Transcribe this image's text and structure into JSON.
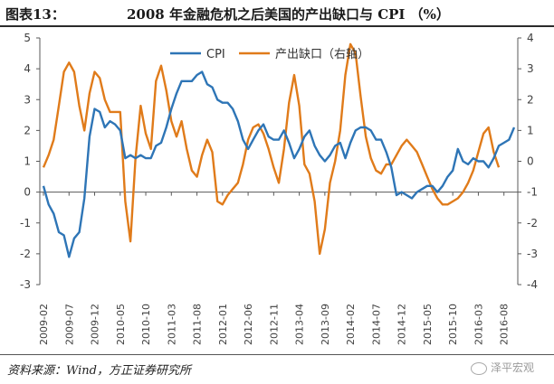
{
  "header": {
    "figure_label": "图表13：",
    "title": "2008 年金融危机之后美国的产出缺口与 CPI （%）"
  },
  "footer": {
    "source": "资料来源：Wind，方正证券研究所",
    "watermark": "泽平宏观"
  },
  "chart_data": {
    "type": "line",
    "title": "2008 年金融危机之后美国的产出缺口与 CPI （%）",
    "xlabel": "",
    "ylabel_left": "",
    "ylabel_right": "",
    "ylim_left": [
      -3,
      5
    ],
    "ylim_right": [
      -4,
      4
    ],
    "y_ticks_left": [
      "5",
      "4",
      "3",
      "2",
      "1",
      "0",
      "-1",
      "-2",
      "-3"
    ],
    "y_ticks_right": [
      "4",
      "3",
      "2",
      "1",
      "0",
      "-1",
      "-2",
      "-3",
      "-4"
    ],
    "x_tick_labels": [
      "2009-02",
      "2009-07",
      "2009-12",
      "2010-05",
      "2010-10",
      "2011-03",
      "2011-08",
      "2012-01",
      "2012-06",
      "2012-11",
      "2013-04",
      "2013-09",
      "2014-02",
      "2014-07",
      "2014-12",
      "2015-05",
      "2015-10",
      "2016-03",
      "2016-08"
    ],
    "legend_position": "top",
    "grid": false,
    "colors": {
      "cpi": "#2e75b6",
      "gap": "#e07b1a",
      "axis": "#595959"
    },
    "series": [
      {
        "name": "CPI",
        "axis": "left",
        "values": [
          0.2,
          -0.4,
          -0.7,
          -1.3,
          -1.4,
          -2.1,
          -1.5,
          -1.3,
          -0.2,
          1.8,
          2.7,
          2.6,
          2.1,
          2.3,
          2.2,
          2.0,
          1.1,
          1.2,
          1.1,
          1.2,
          1.1,
          1.1,
          1.5,
          1.6,
          2.1,
          2.7,
          3.2,
          3.6,
          3.6,
          3.6,
          3.8,
          3.9,
          3.5,
          3.4,
          3.0,
          2.9,
          2.9,
          2.7,
          2.3,
          1.7,
          1.4,
          1.7,
          2.0,
          2.2,
          1.8,
          1.7,
          1.7,
          2.0,
          1.6,
          1.1,
          1.4,
          1.8,
          2.0,
          1.5,
          1.2,
          1.0,
          1.2,
          1.5,
          1.6,
          1.1,
          1.6,
          2.0,
          2.1,
          2.1,
          2.0,
          1.7,
          1.7,
          1.3,
          0.8,
          -0.1,
          0.0,
          -0.1,
          -0.2,
          0.0,
          0.1,
          0.2,
          0.2,
          0.0,
          0.2,
          0.5,
          0.7,
          1.4,
          1.0,
          0.9,
          1.1,
          1.0,
          1.0,
          0.8,
          1.1,
          1.5,
          1.6,
          1.7,
          2.1
        ]
      },
      {
        "name": "产出缺口（右轴）",
        "axis": "right",
        "values": [
          -0.2,
          0.2,
          0.7,
          1.8,
          2.9,
          3.2,
          2.9,
          1.8,
          1.0,
          2.2,
          2.9,
          2.7,
          2.0,
          1.6,
          1.6,
          1.6,
          -1.3,
          -2.6,
          0.1,
          1.8,
          0.9,
          0.4,
          2.6,
          3.1,
          2.3,
          1.3,
          0.8,
          1.3,
          0.4,
          -0.3,
          -0.5,
          0.2,
          0.7,
          0.3,
          -1.3,
          -1.4,
          -1.1,
          -0.9,
          -0.7,
          -0.1,
          0.7,
          1.1,
          1.2,
          0.9,
          0.4,
          -0.2,
          -0.7,
          0.4,
          1.9,
          2.8,
          1.8,
          -0.1,
          -0.4,
          -1.3,
          -3.0,
          -2.2,
          -0.7,
          0.0,
          1.0,
          2.8,
          3.8,
          3.5,
          2.1,
          0.8,
          0.1,
          -0.3,
          -0.4,
          -0.1,
          -0.1,
          0.2,
          0.5,
          0.7,
          0.5,
          0.3,
          -0.1,
          -0.5,
          -0.9,
          -1.2,
          -1.4,
          -1.4,
          -1.3,
          -1.2,
          -1.0,
          -0.7,
          -0.3,
          0.3,
          0.9,
          1.1,
          0.3,
          -0.2
        ]
      }
    ]
  }
}
